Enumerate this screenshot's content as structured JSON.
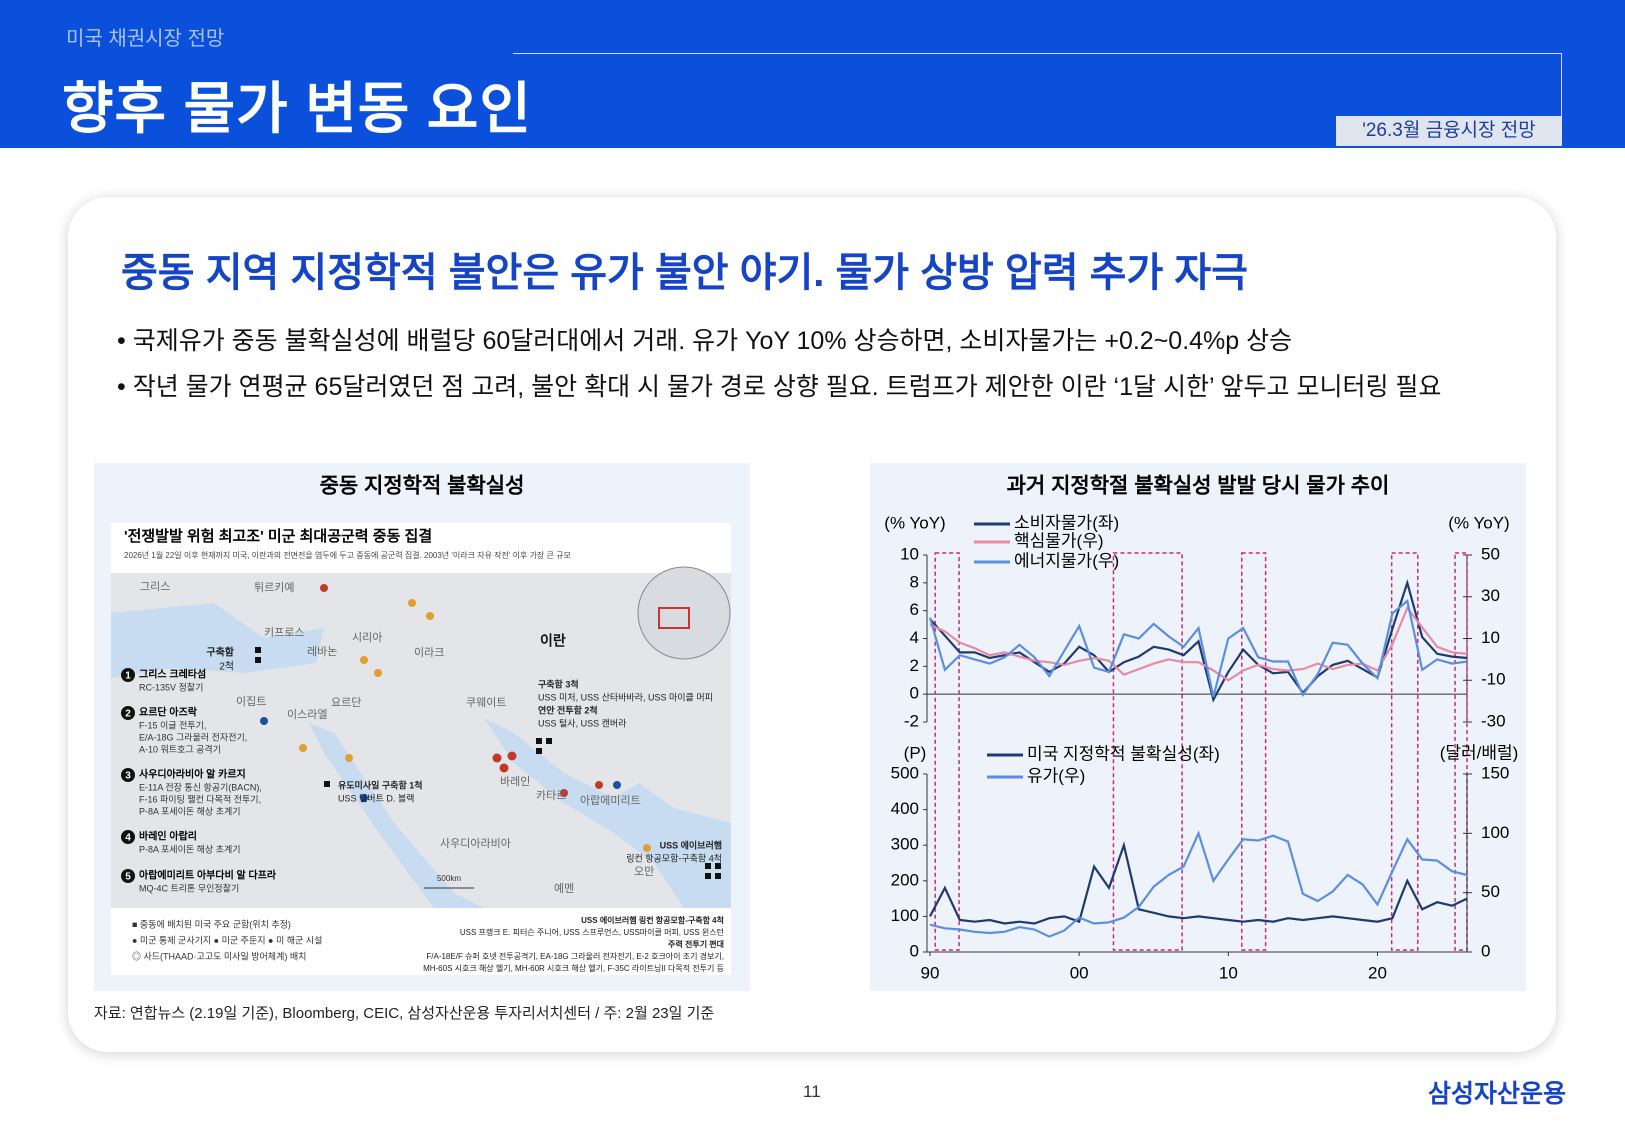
{
  "header": {
    "section": "미국 채권시장 전망",
    "title": "향후 물가 변동 요인",
    "tag": "'26.3월 금융시장 전망"
  },
  "headline": "중동 지역 지정학적 불안은 유가 불안 야기. 물가 상방 압력 추가 자극",
  "bullets": [
    "국제유가 중동 불확실성에 배럴당 60달러대에서 거래. 유가 YoY 10% 상승하면, 소비자물가는 +0.2~0.4%p 상승",
    "작년 물가 연평균 65달러였던 점 고려, 불안 확대 시 물가 경로 상향 필요. 트럼프가 제안한 이란 ‘1달 시한’ 앞두고 모니터링 필요"
  ],
  "left_panel": {
    "title": "중동 지정학적 불확실성",
    "map": {
      "heading": "'전쟁발발 위험 최고조' 미군 최대공군력 중동 집결",
      "subheading": "2026년 1월 22일 이후 현재까지 미국, 이란과의 전면전을 염두에 두고 중동에 공군력 집결. 2003년 '이라크 자유 작전' 이후 가장 큰 규모",
      "places": [
        "그리스",
        "튀르키예",
        "키프로스",
        "시리아",
        "레바논",
        "이라크",
        "이란",
        "이집트",
        "이스라엘",
        "요르단",
        "쿠웨이트",
        "바레인",
        "카타르",
        "아랍에미리트",
        "사우디아라비아",
        "오만",
        "예멘"
      ],
      "callouts": [
        {
          "number": "1",
          "title": "그리스 크레타섬",
          "lines": [
            "RC-135V 정찰기"
          ]
        },
        {
          "number": "2",
          "title": "요르단 아즈락",
          "lines": [
            "F-15 이글 전투기,",
            "E/A-18G 그라울러 전자전기,",
            "A-10 워트호그 공격기"
          ]
        },
        {
          "number": "3",
          "title": "사우디아라비아 알 카르지",
          "lines": [
            "E-11A 전장 통신 항공기(BACN),",
            "F-16 파이팅 팰컨 다목적 전투기,",
            "P-8A 포세이돈 해상 초계기"
          ]
        },
        {
          "number": "4",
          "title": "바레인 아랍리",
          "lines": [
            "P-8A 포세이돈 해상 초계기"
          ]
        },
        {
          "number": "5",
          "title": "아랍에미리트 아부다비 알 다프라",
          "lines": [
            "MQ-4C 트리톤 무인정찰기"
          ]
        }
      ],
      "ships": [
        {
          "lines": [
            "구축함",
            "2척"
          ]
        },
        {
          "lines": [
            "구축함 3척",
            "USS 미처, USS 산타바바라, USS 마이클 머피",
            "연안 전투함 2척",
            "USS 털사, USS 캔버라"
          ]
        },
        {
          "lines": [
            "유도미사일 구축함 1척",
            "USS 델버트 D. 블랙"
          ]
        },
        {
          "lines": [
            "USS 에이브러햄",
            "링컨 항공모함-구축함 4척"
          ]
        },
        {
          "lines": [
            "USS 에이브러햄 링컨 항공모함-구축함 4척",
            "USS 프랭크 E. 피터슨 주니어, USS 스프루언스, USS마이클 머피, USS 윈스턴",
            "주력 전투기 편대",
            "F/A-18E/F 슈퍼 호넷 전투공격기, EA-18G 그라울러 전자전기, E-2 호크아이 조기 경보기,",
            "MH-60S 시호크 해상 헬기, MH-60R 시호크 해상 헬기, F-35C 라이트닝II 다목적 전투기 등"
          ]
        }
      ],
      "legend": [
        "■ 중동에 배치된 미국 주요 군함(위치 추정)",
        "● 미군 통제 군사기지 ● 미군 주둔지 ● 미 해군 시설",
        "◎ 사드(THAAD·고고도 미사일 방어체계) 배치"
      ],
      "scale": "500km"
    }
  },
  "chart_data": [
    {
      "type": "line",
      "title": "과거 지정학절 불확실성 발발 당시 물가 추이",
      "y_label": "(% YoY)",
      "y2_label": "(% YoY)",
      "x": [
        1990,
        1991,
        1992,
        1993,
        1994,
        1995,
        1996,
        1997,
        1998,
        1999,
        2000,
        2001,
        2002,
        2003,
        2004,
        2005,
        2006,
        2007,
        2008,
        2009,
        2010,
        2011,
        2012,
        2013,
        2014,
        2015,
        2016,
        2017,
        2018,
        2019,
        2020,
        2021,
        2022,
        2023,
        2024,
        2025,
        2026
      ],
      "xlim": [
        1989.8,
        2026
      ],
      "ylim": [
        -2,
        10
      ],
      "yticks": [
        10,
        8,
        6,
        4,
        2,
        0,
        -2
      ],
      "y2lim": [
        -30,
        50
      ],
      "y2ticks": [
        50,
        30,
        10,
        -10,
        -30
      ],
      "highlights": [
        [
          1990.35,
          1991.95
        ],
        [
          2002.3,
          2006.9
        ],
        [
          2010.9,
          2012.5
        ],
        [
          2020.95,
          2022.7
        ],
        [
          2025.2,
          2026
        ]
      ],
      "series": [
        {
          "name": "소비자물가(좌)",
          "color": "#1f3a6e",
          "values": [
            5.4,
            4.2,
            3.0,
            3.0,
            2.6,
            2.8,
            3.0,
            2.3,
            1.6,
            2.2,
            3.4,
            2.8,
            1.6,
            2.3,
            2.7,
            3.4,
            3.2,
            2.8,
            3.8,
            -0.4,
            1.6,
            3.2,
            2.1,
            1.5,
            1.6,
            0.1,
            1.3,
            2.1,
            2.4,
            1.8,
            1.2,
            4.7,
            8.0,
            4.1,
            2.9,
            2.7,
            2.6
          ]
        },
        {
          "name": "핵심물가(우)",
          "color": "#e88aa2",
          "values": [
            5.0,
            4.5,
            3.7,
            3.3,
            2.8,
            3.0,
            2.7,
            2.4,
            2.3,
            2.1,
            2.4,
            2.6,
            2.4,
            1.4,
            1.8,
            2.2,
            2.5,
            2.3,
            2.3,
            1.7,
            1.0,
            1.7,
            2.1,
            1.8,
            1.7,
            1.8,
            2.2,
            1.8,
            2.1,
            2.2,
            1.7,
            3.6,
            6.2,
            4.8,
            3.4,
            3.0,
            2.9
          ]
        },
        {
          "name": "에너지물가(우)",
          "color": "#5b8ee0",
          "axis": "y2",
          "values": [
            20,
            -5,
            2,
            0,
            -2,
            1,
            7,
            1,
            -8,
            4,
            16,
            -4,
            -6,
            12,
            10,
            17,
            11,
            6,
            15,
            -18,
            10,
            15,
            1,
            -1,
            -1,
            -17,
            -7,
            8,
            7,
            -2,
            -9,
            22,
            28,
            -5,
            0,
            -2,
            -1
          ]
        }
      ]
    },
    {
      "type": "line",
      "y_label": "(P)",
      "y2_label": "(달러/배럴)",
      "x": [
        1990,
        1991,
        1992,
        1993,
        1994,
        1995,
        1996,
        1997,
        1998,
        1999,
        2000,
        2001,
        2002,
        2003,
        2004,
        2005,
        2006,
        2007,
        2008,
        2009,
        2010,
        2011,
        2012,
        2013,
        2014,
        2015,
        2016,
        2017,
        2018,
        2019,
        2020,
        2021,
        2022,
        2023,
        2024,
        2025,
        2026
      ],
      "xlim": [
        1989.8,
        2026
      ],
      "xticks": [
        {
          "value": 1990,
          "label": "90"
        },
        {
          "value": 2000,
          "label": "00"
        },
        {
          "value": 2010,
          "label": "10"
        },
        {
          "value": 2020,
          "label": "20"
        }
      ],
      "ylim": [
        0,
        500
      ],
      "yticks": [
        500,
        400,
        300,
        200,
        100,
        0
      ],
      "y2lim": [
        0,
        150
      ],
      "y2ticks": [
        150,
        100,
        50,
        0
      ],
      "series": [
        {
          "name": "미국 지정학적 불확실성(좌)",
          "color": "#1f3a6e",
          "values": [
            100,
            180,
            90,
            85,
            90,
            80,
            85,
            80,
            95,
            100,
            85,
            240,
            180,
            300,
            120,
            110,
            100,
            95,
            100,
            95,
            90,
            85,
            90,
            85,
            95,
            90,
            95,
            100,
            95,
            90,
            85,
            95,
            200,
            120,
            140,
            130,
            150
          ]
        },
        {
          "name": "유가(우)",
          "color": "#5b8ee0",
          "axis": "y2",
          "values": [
            23,
            20,
            19,
            17,
            16,
            17,
            21,
            19,
            13,
            18,
            29,
            24,
            25,
            29,
            38,
            55,
            65,
            72,
            100,
            60,
            78,
            95,
            94,
            98,
            93,
            49,
            43,
            51,
            65,
            57,
            40,
            68,
            95,
            78,
            77,
            68,
            65
          ]
        }
      ]
    }
  ],
  "source": "자료: 연합뉴스 (2.19일 기준), Bloomberg, CEIC, 삼성자산운용 투자리서치센터 / 주: 2월 23일 기준",
  "page_number": "11",
  "logo": "삼성자산운용"
}
